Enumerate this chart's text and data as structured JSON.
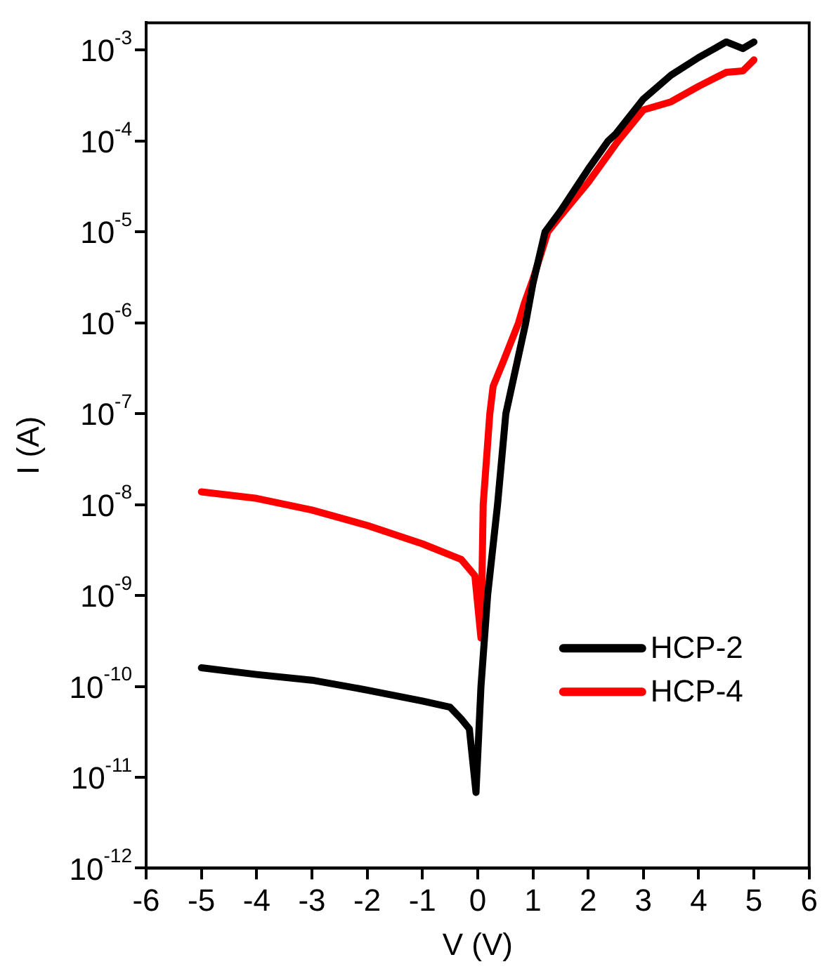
{
  "chart_data": {
    "type": "line",
    "xlabel": "V (V)",
    "ylabel": "I (A)",
    "log": "y",
    "grid": false,
    "legend": "right",
    "line_style": "solid",
    "marker": "none",
    "xlim": [
      -6,
      6
    ],
    "xticks": [
      -6,
      -5,
      -4,
      -3,
      -2,
      -1,
      0,
      1,
      2,
      3,
      4,
      5,
      6
    ],
    "ylim": [
      1e-12,
      0.002
    ],
    "yticks": [
      {
        "value": 1e-12,
        "label": "10$^{-12}$"
      },
      {
        "value": 1e-11,
        "label": "10$^{-11}$"
      },
      {
        "value": 1e-10,
        "label": "10$^{-10}$"
      },
      {
        "value": 1e-09,
        "label": "10$^{-9}$"
      },
      {
        "value": 1e-08,
        "label": "10$^{-8}$"
      },
      {
        "value": 1e-07,
        "label": "10$^{-7}$"
      },
      {
        "value": 1e-06,
        "label": "10$^{-6}$"
      },
      {
        "value": 1e-05,
        "label": "10$^{-5}$"
      },
      {
        "value": 0.0001,
        "label": "10$^{-4}$"
      },
      {
        "value": 0.001,
        "label": "10$^{-3}$"
      }
    ],
    "series": [
      {
        "name": "HCP-2",
        "color": "#000000",
        "x": [
          -5,
          -4,
          -3,
          -2,
          -1,
          -0.5,
          -0.3,
          -0.15,
          -0.03,
          0.06,
          0.18,
          0.36,
          0.51,
          0.87,
          1,
          1.22,
          1.5,
          2,
          2.36,
          2.5,
          3,
          3.5,
          4,
          4.5,
          4.8,
          5
        ],
        "values": [
          1.6e-10,
          1.35e-10,
          1.17e-10,
          9.1e-11,
          6.9e-11,
          5.9e-11,
          4.4e-11,
          3.4e-11,
          6.8e-12,
          1e-10,
          1e-09,
          1e-08,
          1e-07,
          1e-06,
          2.7e-06,
          1e-05,
          1.7e-05,
          4.9e-05,
          0.0001,
          0.00012,
          0.00029,
          0.00053,
          0.00083,
          0.00123,
          0.00104,
          0.00123
        ]
      },
      {
        "name": "HCP-4",
        "color": "#ff0000",
        "x": [
          -5,
          -4,
          -3,
          -2,
          -1,
          -0.3,
          -0.05,
          0.06,
          0.1,
          0.22,
          0.28,
          0.46,
          0.74,
          0.84,
          1,
          1.27,
          1.5,
          2,
          2.54,
          3,
          3.5,
          4,
          4.5,
          4.8,
          5
        ],
        "values": [
          1.38e-08,
          1.17e-08,
          8.7e-09,
          5.9e-09,
          3.7e-09,
          2.5e-09,
          1.65e-09,
          3.4e-10,
          1e-08,
          1e-07,
          2e-07,
          3.7e-07,
          1e-06,
          1.6e-06,
          3e-06,
          1e-05,
          1.5e-05,
          3.5e-05,
          0.0001,
          0.00022,
          0.00027,
          0.0004,
          0.00057,
          0.00059,
          0.00078
        ]
      }
    ]
  }
}
